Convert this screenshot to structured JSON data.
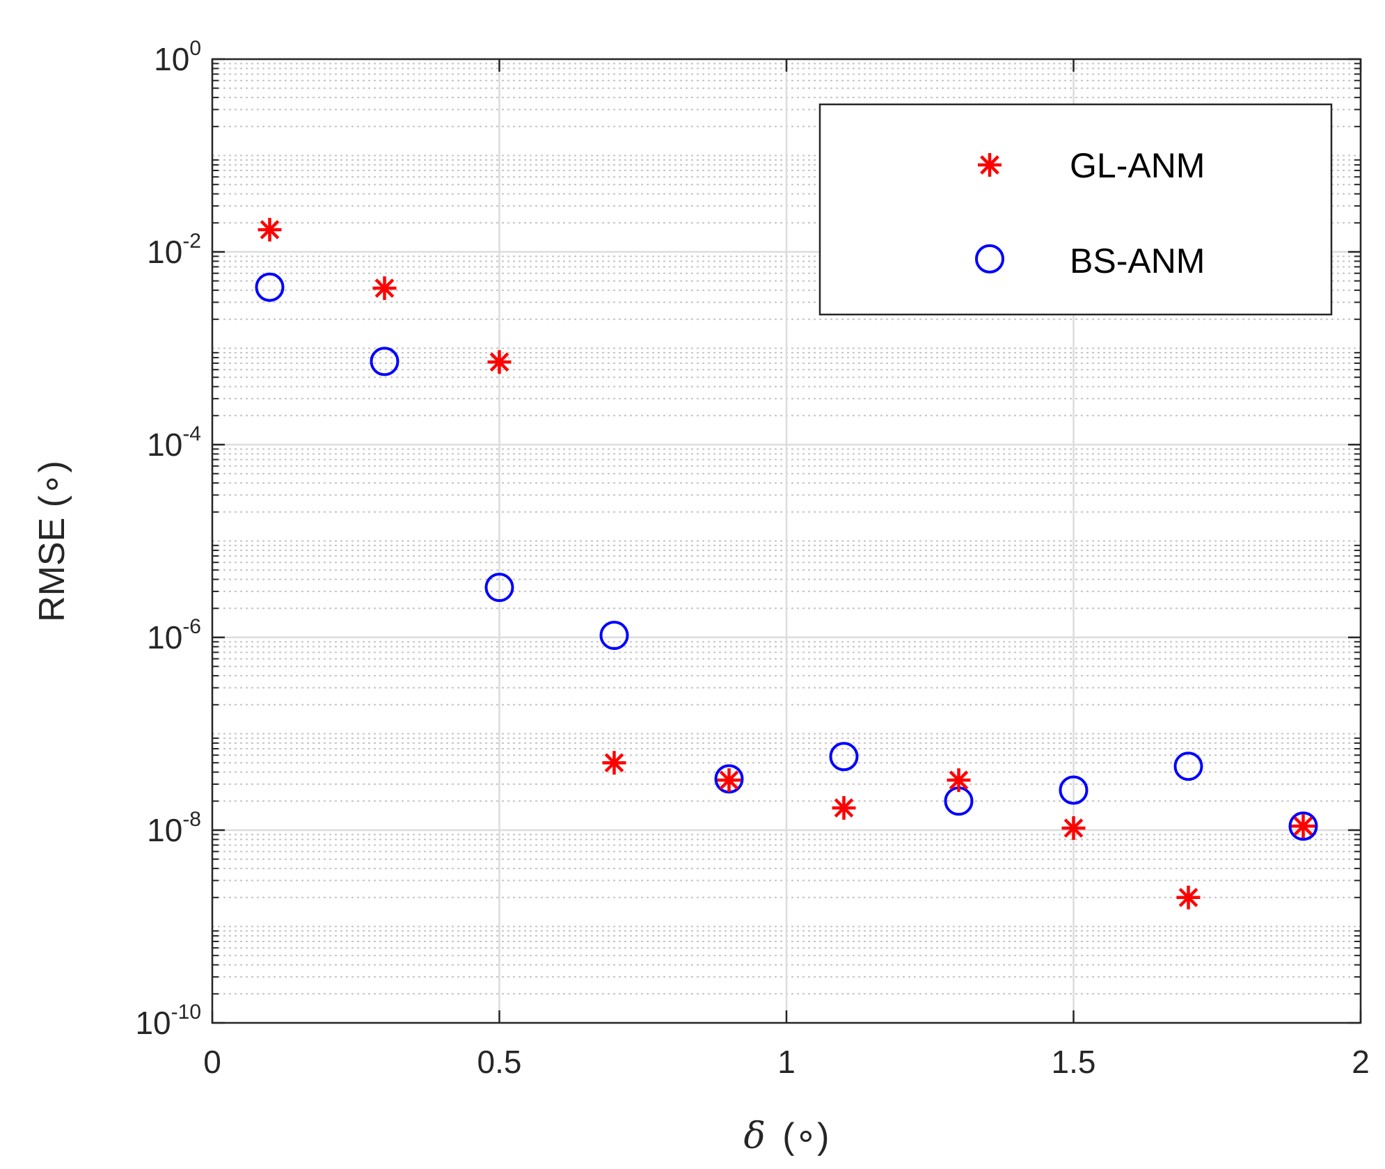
{
  "chart_data": {
    "type": "scatter",
    "title": "",
    "xlabel_symbol": "δ",
    "xlabel_unit": "(∘)",
    "ylabel": "RMSE (∘)",
    "xlim": [
      0,
      2
    ],
    "ylim": [
      1e-10,
      1
    ],
    "yscale": "log",
    "grid": true,
    "minor_grid": true,
    "legend_position": "top-right",
    "x_ticks": [
      "0",
      "0.5",
      "1",
      "1.5",
      "2"
    ],
    "y_ticks": [
      {
        "base": "10",
        "exp": "0"
      },
      {
        "base": "10",
        "exp": "-2"
      },
      {
        "base": "10",
        "exp": "-4"
      },
      {
        "base": "10",
        "exp": "-6"
      },
      {
        "base": "10",
        "exp": "-8"
      },
      {
        "base": "10",
        "exp": "-10"
      }
    ],
    "series": [
      {
        "name": "GL-ANM",
        "marker": "asterisk",
        "color": "#ff0000",
        "points": [
          {
            "x": 0.1,
            "y": 0.017
          },
          {
            "x": 0.3,
            "y": 0.0042
          },
          {
            "x": 0.5,
            "y": 0.00072
          },
          {
            "x": 0.7,
            "y": 5e-08
          },
          {
            "x": 0.9,
            "y": 3.3e-08
          },
          {
            "x": 1.1,
            "y": 1.7e-08
          },
          {
            "x": 1.3,
            "y": 3.3e-08
          },
          {
            "x": 1.5,
            "y": 1.05e-08
          },
          {
            "x": 1.7,
            "y": 2e-09
          },
          {
            "x": 1.9,
            "y": 1.1e-08
          }
        ]
      },
      {
        "name": "BS-ANM",
        "marker": "circle",
        "color": "#0000ff",
        "points": [
          {
            "x": 0.1,
            "y": 0.0043
          },
          {
            "x": 0.3,
            "y": 0.00073
          },
          {
            "x": 0.5,
            "y": 3.3e-06
          },
          {
            "x": 0.7,
            "y": 1.05e-06
          },
          {
            "x": 0.9,
            "y": 3.4e-08
          },
          {
            "x": 1.1,
            "y": 5.8e-08
          },
          {
            "x": 1.3,
            "y": 2e-08
          },
          {
            "x": 1.5,
            "y": 2.6e-08
          },
          {
            "x": 1.7,
            "y": 4.6e-08
          },
          {
            "x": 1.9,
            "y": 1.1e-08
          }
        ]
      }
    ]
  }
}
